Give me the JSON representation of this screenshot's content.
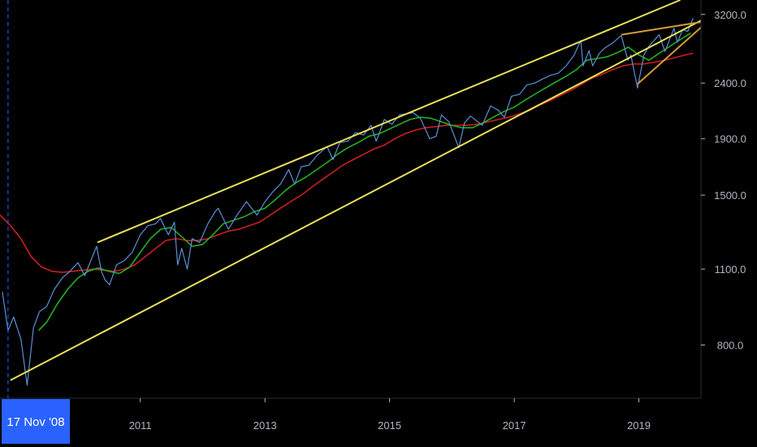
{
  "chart_data": {
    "type": "line",
    "scale": "log",
    "ylim": [
      640,
      3400
    ],
    "xlim": [
      "2008-10-01",
      "2019-12-31"
    ],
    "y_ticks": [
      3200,
      2400,
      1900,
      1500,
      1100,
      800
    ],
    "y_tick_labels": [
      "3200.0",
      "2400.0",
      "1900.0",
      "1500.0",
      "1100.0",
      "800.0"
    ],
    "x_ticks": [
      "2011-01-01",
      "2013-01-01",
      "2015-01-01",
      "2017-01-01",
      "2019-01-01"
    ],
    "x_tick_labels": [
      "2011",
      "2013",
      "2015",
      "2017",
      "2019"
    ],
    "crosshair": {
      "date": "2008-11-17",
      "label": "17 Nov '08"
    },
    "colors": {
      "price": "#5b8fd6",
      "ma_fast": "#22b022",
      "ma_slow": "#cc1f1f",
      "trend": "#e8e05a",
      "wedge": "#d49a3a",
      "axis": "#b2b5be",
      "crosshair": "#2962ff"
    },
    "series": [
      {
        "key": "price",
        "x": [
          "2008-10-15",
          "2008-11-17",
          "2008-12-20",
          "2009-02-01",
          "2009-03-09",
          "2009-04-15",
          "2009-05-20",
          "2009-07-01",
          "2009-08-15",
          "2009-10-01",
          "2009-11-15",
          "2010-01-01",
          "2010-02-10",
          "2010-04-20",
          "2010-05-20",
          "2010-06-10",
          "2010-07-05",
          "2010-08-15",
          "2010-09-30",
          "2010-11-15",
          "2011-01-01",
          "2011-02-15",
          "2011-04-01",
          "2011-04-29",
          "2011-06-15",
          "2011-07-20",
          "2011-08-08",
          "2011-09-01",
          "2011-10-03",
          "2011-11-01",
          "2011-12-15",
          "2012-02-01",
          "2012-03-15",
          "2012-04-02",
          "2012-06-01",
          "2012-07-15",
          "2012-09-14",
          "2012-11-15",
          "2013-01-01",
          "2013-02-15",
          "2013-04-01",
          "2013-05-20",
          "2013-06-24",
          "2013-08-01",
          "2013-09-15",
          "2013-11-01",
          "2013-12-31",
          "2014-02-03",
          "2014-03-15",
          "2014-05-01",
          "2014-06-15",
          "2014-08-01",
          "2014-09-15",
          "2014-10-15",
          "2014-12-01",
          "2015-01-15",
          "2015-03-01",
          "2015-05-20",
          "2015-07-01",
          "2015-08-24",
          "2015-10-01",
          "2015-11-01",
          "2015-12-15",
          "2016-02-11",
          "2016-03-15",
          "2016-04-20",
          "2016-06-27",
          "2016-08-15",
          "2016-10-01",
          "2016-11-04",
          "2016-12-15",
          "2017-02-01",
          "2017-03-15",
          "2017-05-01",
          "2017-06-15",
          "2017-08-01",
          "2017-09-15",
          "2017-11-01",
          "2017-12-15",
          "2018-01-26",
          "2018-02-08",
          "2018-03-15",
          "2018-04-05",
          "2018-05-15",
          "2018-06-15",
          "2018-08-01",
          "2018-09-20",
          "2018-10-29",
          "2018-11-15",
          "2018-12-24",
          "2019-01-31",
          "2019-03-01",
          "2019-04-30",
          "2019-06-03",
          "2019-07-26",
          "2019-08-15",
          "2019-09-15",
          "2019-10-15",
          "2019-11-15"
        ],
        "values": [
          1000,
          850,
          900,
          820,
          676,
          860,
          920,
          940,
          1010,
          1060,
          1090,
          1130,
          1070,
          1210,
          1085,
          1050,
          1030,
          1120,
          1140,
          1180,
          1270,
          1320,
          1330,
          1360,
          1270,
          1340,
          1120,
          1200,
          1100,
          1250,
          1230,
          1330,
          1400,
          1420,
          1300,
          1370,
          1460,
          1380,
          1460,
          1520,
          1570,
          1670,
          1570,
          1690,
          1700,
          1770,
          1840,
          1740,
          1870,
          1880,
          1950,
          1930,
          2010,
          1880,
          2060,
          2020,
          2100,
          2120,
          2070,
          1900,
          1920,
          2100,
          2040,
          1830,
          2030,
          2090,
          2010,
          2180,
          2140,
          2080,
          2270,
          2290,
          2380,
          2400,
          2440,
          2480,
          2500,
          2580,
          2690,
          2870,
          2580,
          2750,
          2580,
          2720,
          2780,
          2840,
          2930,
          2640,
          2700,
          2350,
          2700,
          2800,
          2940,
          2740,
          3020,
          2850,
          3000,
          2980,
          3150
        ]
      },
      {
        "key": "ma_fast",
        "x": [
          "2009-05-15",
          "2009-07-01",
          "2009-09-01",
          "2009-11-01",
          "2010-01-01",
          "2010-03-01",
          "2010-05-01",
          "2010-07-01",
          "2010-09-01",
          "2010-11-01",
          "2011-01-01",
          "2011-03-01",
          "2011-05-01",
          "2011-07-01",
          "2011-09-01",
          "2011-11-01",
          "2012-01-01",
          "2012-03-01",
          "2012-05-01",
          "2012-07-01",
          "2012-09-01",
          "2012-11-01",
          "2013-01-01",
          "2013-03-01",
          "2013-05-01",
          "2013-07-01",
          "2013-09-01",
          "2013-11-01",
          "2014-01-01",
          "2014-03-01",
          "2014-05-01",
          "2014-07-01",
          "2014-09-01",
          "2014-11-01",
          "2015-01-01",
          "2015-03-01",
          "2015-05-01",
          "2015-07-01",
          "2015-09-01",
          "2015-11-01",
          "2016-01-01",
          "2016-03-01",
          "2016-05-01",
          "2016-07-01",
          "2016-09-01",
          "2016-11-01",
          "2017-01-01",
          "2017-03-01",
          "2017-05-01",
          "2017-07-01",
          "2017-09-01",
          "2017-11-01",
          "2018-01-01",
          "2018-03-01",
          "2018-05-01",
          "2018-07-01",
          "2018-09-01",
          "2018-11-01",
          "2019-01-01",
          "2019-03-01",
          "2019-05-01",
          "2019-07-01",
          "2019-09-01",
          "2019-11-01"
        ],
        "values": [
          850,
          880,
          950,
          1010,
          1060,
          1090,
          1105,
          1090,
          1080,
          1110,
          1180,
          1250,
          1300,
          1310,
          1260,
          1210,
          1220,
          1270,
          1330,
          1350,
          1370,
          1400,
          1420,
          1470,
          1530,
          1580,
          1620,
          1670,
          1720,
          1780,
          1830,
          1870,
          1920,
          1940,
          1980,
          2020,
          2060,
          2080,
          2070,
          2040,
          2010,
          1990,
          1990,
          2030,
          2080,
          2130,
          2170,
          2230,
          2290,
          2350,
          2410,
          2470,
          2540,
          2640,
          2660,
          2680,
          2730,
          2790,
          2700,
          2640,
          2720,
          2800,
          2880,
          2960
        ]
      },
      {
        "key": "ma_slow",
        "x": [
          "2008-10-01",
          "2008-12-01",
          "2009-02-01",
          "2009-04-01",
          "2009-06-01",
          "2009-08-01",
          "2009-10-01",
          "2009-12-01",
          "2010-02-01",
          "2010-04-01",
          "2010-06-01",
          "2010-08-01",
          "2010-10-01",
          "2010-12-01",
          "2011-02-01",
          "2011-04-01",
          "2011-06-01",
          "2011-08-01",
          "2011-10-01",
          "2011-12-01",
          "2012-02-01",
          "2012-04-01",
          "2012-06-01",
          "2012-08-01",
          "2012-10-01",
          "2012-12-01",
          "2013-02-01",
          "2013-04-01",
          "2013-06-01",
          "2013-08-01",
          "2013-10-01",
          "2013-12-01",
          "2014-02-01",
          "2014-04-01",
          "2014-06-01",
          "2014-08-01",
          "2014-10-01",
          "2014-12-01",
          "2015-02-01",
          "2015-04-01",
          "2015-06-01",
          "2015-08-01",
          "2015-10-01",
          "2015-12-01",
          "2016-02-01",
          "2016-04-01",
          "2016-06-01",
          "2016-08-01",
          "2016-10-01",
          "2016-12-01",
          "2017-02-01",
          "2017-04-01",
          "2017-06-01",
          "2017-08-01",
          "2017-10-01",
          "2017-12-01",
          "2018-02-01",
          "2018-04-01",
          "2018-06-01",
          "2018-08-01",
          "2018-10-01",
          "2018-12-01",
          "2019-02-01",
          "2019-04-01",
          "2019-06-01",
          "2019-08-01",
          "2019-10-01",
          "2019-11-15"
        ],
        "values": [
          1380,
          1320,
          1250,
          1160,
          1110,
          1090,
          1085,
          1090,
          1095,
          1100,
          1095,
          1090,
          1100,
          1120,
          1160,
          1200,
          1240,
          1250,
          1240,
          1240,
          1250,
          1270,
          1290,
          1300,
          1320,
          1340,
          1380,
          1420,
          1460,
          1500,
          1550,
          1600,
          1650,
          1700,
          1740,
          1780,
          1820,
          1850,
          1900,
          1940,
          1970,
          1990,
          2000,
          2010,
          2010,
          2010,
          2020,
          2040,
          2060,
          2080,
          2110,
          2140,
          2190,
          2230,
          2280,
          2330,
          2390,
          2450,
          2490,
          2540,
          2580,
          2600,
          2600,
          2620,
          2640,
          2670,
          2700,
          2720
        ]
      }
    ],
    "trendlines": [
      {
        "kind": "trend",
        "x": [
          "2008-12-01",
          "2019-12-31"
        ],
        "y": [
          690,
          3120
        ]
      },
      {
        "kind": "trend",
        "x": [
          "2010-04-25",
          "2019-09-01"
        ],
        "y": [
          1230,
          3400
        ]
      },
      {
        "kind": "wedge",
        "x": [
          "2018-09-20",
          "2019-12-31"
        ],
        "y": [
          2940,
          3100
        ]
      },
      {
        "kind": "wedge",
        "x": [
          "2018-12-24",
          "2019-12-31"
        ],
        "y": [
          2390,
          3030
        ]
      }
    ]
  }
}
